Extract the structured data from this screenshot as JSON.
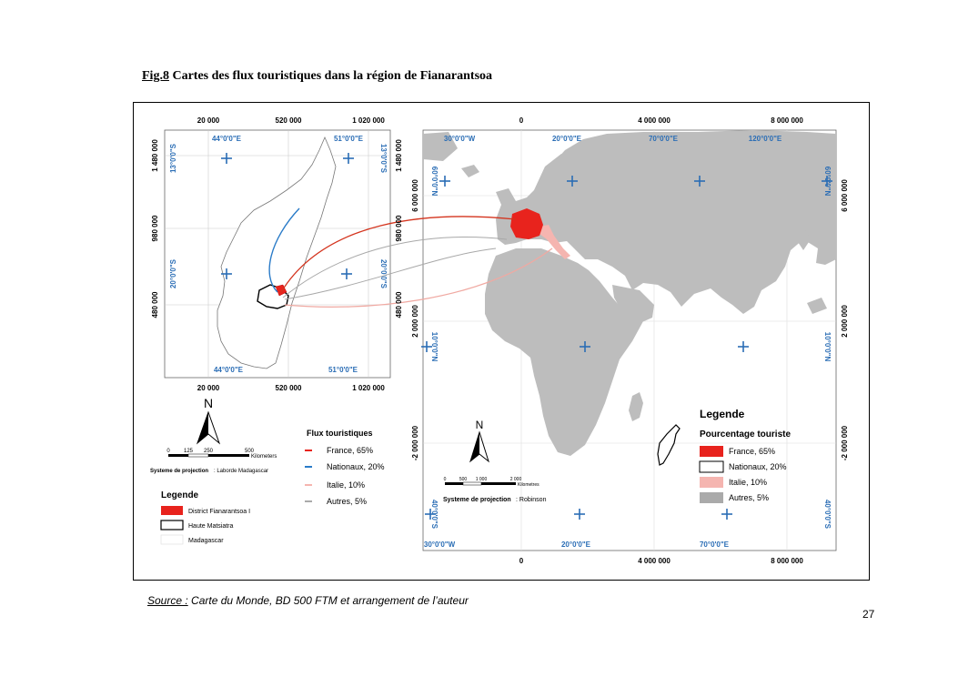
{
  "title": {
    "number": "Fig.8",
    "text": " Cartes des flux touristiques dans la région de Fianarantsoa"
  },
  "colors": {
    "france": "#e8231d",
    "nationaux": "#2a7bc8",
    "italie": "#f5b5b0",
    "autres": "#aaaaaa",
    "land": "#bdbdbd",
    "graticule": "#2a6db5"
  },
  "left_map": {
    "x_ticks": [
      "20 000",
      "520 000",
      "1 020 000"
    ],
    "y_ticks": [
      "1 480 000",
      "980 000",
      "480 000"
    ],
    "lon_labels": [
      "44°0'0\"E",
      "51°0'0\"E"
    ],
    "lat_labels": [
      "13°0'0\"S",
      "20°0'0\"S"
    ],
    "north": "N",
    "scale": {
      "ticks": [
        "0",
        "125",
        "250",
        "500"
      ],
      "unit": "Kilometers"
    },
    "projection_label": "Systeme de projection",
    "projection_value": ": Laborde Madagascar",
    "flux_title": "Flux touristiques",
    "flux_items": [
      {
        "label": "France, 65%",
        "color": "#e8231d"
      },
      {
        "label": "Nationaux, 20%",
        "color": "#2a7bc8"
      },
      {
        "label": "Italie, 10%",
        "color": "#f5b5b0"
      },
      {
        "label": "Autres, 5%",
        "color": "#aaaaaa"
      }
    ],
    "legend_title": "Legende",
    "legend_items": [
      {
        "label": "District Fianarantsoa I"
      },
      {
        "label": "Haute Matsiatra"
      },
      {
        "label": "Madagascar"
      }
    ]
  },
  "right_map": {
    "x_ticks": [
      "0",
      "4 000 000",
      "8 000 000"
    ],
    "y_ticks_left": [
      "6 000 000",
      "2 000 000",
      "-2 000 000"
    ],
    "y_ticks_right": [
      "6 000 000",
      "2 000 000",
      "-2 000 000"
    ],
    "y_ticks_mid": [
      "1 480 000",
      "980 000",
      "480 000"
    ],
    "lon_labels_top": [
      "30°0'0\"W",
      "20°0'0\"E",
      "70°0'0\"E",
      "120°0'0\"E"
    ],
    "lon_labels_bottom": [
      "30°0'0\"W",
      "20°0'0\"E",
      "70°0'0\"E"
    ],
    "lat_labels": [
      "60°0'0\"N",
      "10°0'0\"N",
      "40°0'0\"S"
    ],
    "north": "N",
    "scale": {
      "ticks": [
        "0",
        "500",
        "1 000",
        "2 000"
      ],
      "unit": "Kilometres"
    },
    "projection_label": "Systeme de projection",
    "projection_value": ": Robinson",
    "legend_title": "Legende",
    "legend_subtitle": "Pourcentage touriste",
    "legend_items": [
      {
        "label": "France, 65%"
      },
      {
        "label": "Nationaux, 20%"
      },
      {
        "label": "Italie, 10%"
      },
      {
        "label": "Autres, 5%"
      }
    ]
  },
  "source": {
    "label": "Source :",
    "text": " Carte du Monde, BD 500 FTM et arrangement de l’auteur"
  },
  "page_number": "27"
}
